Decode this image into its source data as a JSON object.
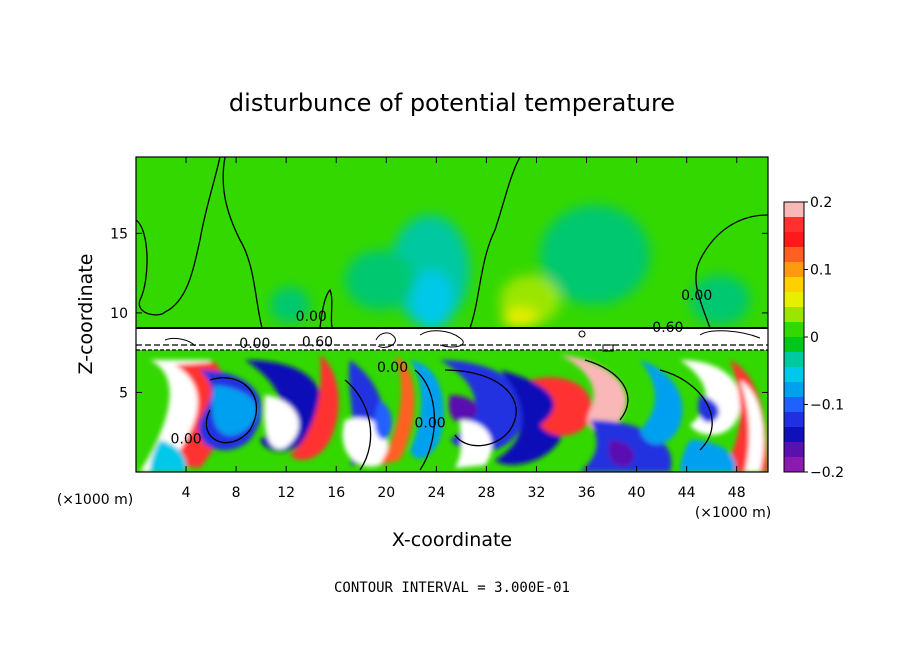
{
  "chart_data": {
    "type": "heatmap",
    "title": "disturbunce of potential temperature",
    "xlabel": "X-coordinate",
    "ylabel": "Z-coordinate",
    "x_unit_left": "(×1000 m)",
    "x_unit_right": "(×1000 m)",
    "footer": "CONTOUR INTERVAL = 3.000E-01",
    "xlim": [
      0,
      50.5
    ],
    "ylim": [
      0,
      19.8
    ],
    "x_ticks": [
      4,
      8,
      12,
      16,
      20,
      24,
      28,
      32,
      36,
      40,
      44,
      48
    ],
    "y_ticks": [
      5,
      10,
      15
    ],
    "colorbar": {
      "ticks": [
        "0.2",
        "0.1",
        "0",
        "−0.1",
        "−0.2"
      ],
      "range": [
        -0.2,
        0.2
      ],
      "colors": [
        "#f9b7b7",
        "#ff3030",
        "#ff1a1a",
        "#ff6020",
        "#ff9a10",
        "#ffd000",
        "#e8ee00",
        "#9be600",
        "#33d800",
        "#00c818",
        "#00c8a0",
        "#00c8e8",
        "#00a0f0",
        "#2060ff",
        "#2030e0",
        "#1010b8",
        "#5a10b0",
        "#8c1ab0"
      ]
    },
    "contour_labels": [
      {
        "text": "0.00",
        "x": 14.0,
        "y": 9.5
      },
      {
        "text": "0.00",
        "x": 9.5,
        "y": 7.8
      },
      {
        "text": "0.60",
        "x": 14.5,
        "y": 7.9
      },
      {
        "text": "0.60",
        "x": 42.5,
        "y": 8.8
      },
      {
        "text": "0.00",
        "x": 44.8,
        "y": 10.8
      },
      {
        "text": "0.00",
        "x": 20.5,
        "y": 6.3
      },
      {
        "text": "0.00",
        "x": 4.0,
        "y": 1.8
      },
      {
        "text": "0.00",
        "x": 23.5,
        "y": 2.8
      }
    ]
  }
}
